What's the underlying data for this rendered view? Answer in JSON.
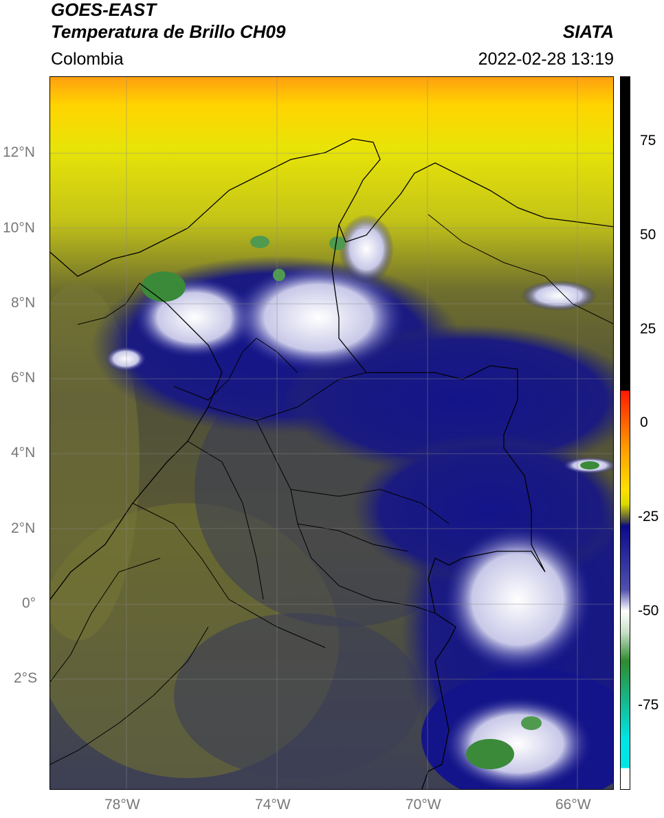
{
  "header": {
    "line1": "GOES-EAST",
    "line2": "Temperatura de Brillo CH09",
    "region": "Colombia",
    "agency": "SIATA",
    "datetime": "2022-02-28 13:19"
  },
  "axes": {
    "lat_labels": [
      "12°N",
      "10°N",
      "8°N",
      "6°N",
      "4°N",
      "2°N",
      "0°",
      "2°S"
    ],
    "lon_labels": [
      "78°W",
      "74°W",
      "70°W",
      "66°W"
    ]
  },
  "colorbar": {
    "labels": [
      "75",
      "50",
      "25",
      "0",
      "-25",
      "-50",
      "-75"
    ],
    "colors": [
      "#000000",
      "#ff1a00",
      "#ffd400",
      "#d9d900",
      "#2f2f55",
      "#0a0a8a",
      "#ffffff",
      "#2e8b2e",
      "#00e5e5"
    ]
  },
  "colors": {
    "cold_top_white": "#ffffff",
    "deep_convection_green": "#3a8a3a",
    "mid_blue": "#14148a",
    "warm_yellow": "#e0e010",
    "hot_orange": "#ff9a10",
    "slate": "#3b3d55",
    "olive": "#6c6c2e"
  }
}
